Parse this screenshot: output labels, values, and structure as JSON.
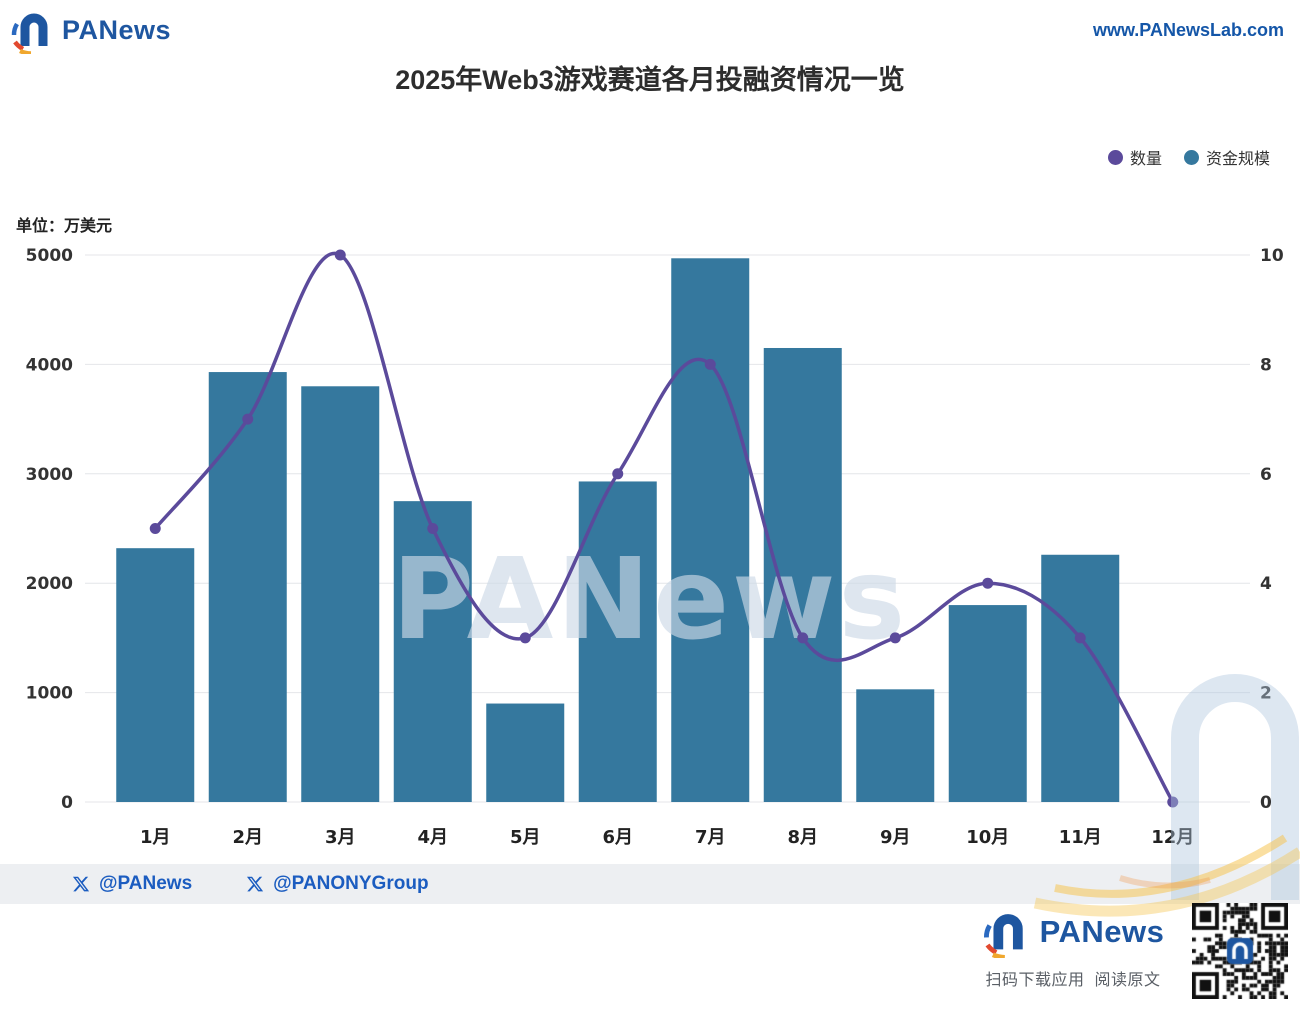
{
  "header": {
    "brand": "PANews",
    "website": "www.PANewsLab.com"
  },
  "title": "2025年Web3游戏赛道各月投融资情况一览",
  "unit_label": "单位：万美元",
  "watermark": "PANews",
  "footer": {
    "handles": [
      "@PANews",
      "@PANONYGroup"
    ],
    "brand": "PANews",
    "qr_caption": "扫码下载应用  阅读原文"
  },
  "chart_data": {
    "type": "bar+line",
    "title": "2025年Web3游戏赛道各月投融资情况一览",
    "categories": [
      "1月",
      "2月",
      "3月",
      "4月",
      "5月",
      "6月",
      "7月",
      "8月",
      "9月",
      "10月",
      "11月",
      "12月"
    ],
    "series": [
      {
        "name": "资金规模",
        "type": "bar",
        "axis": "left",
        "color": "#35789E",
        "values": [
          2320,
          3930,
          3800,
          2750,
          900,
          2930,
          4970,
          4150,
          1030,
          1800,
          2260,
          0
        ]
      },
      {
        "name": "数量",
        "type": "line",
        "axis": "right",
        "color": "#5B4A9B",
        "values": [
          5,
          7,
          10,
          5,
          3,
          6,
          8,
          3,
          3,
          4,
          3,
          0
        ]
      }
    ],
    "left_axis": {
      "label": "单位：万美元",
      "min": 0,
      "max": 5000,
      "ticks": [
        0,
        1000,
        2000,
        3000,
        4000,
        5000
      ]
    },
    "right_axis": {
      "min": 0,
      "max": 10,
      "ticks": [
        0,
        2,
        4,
        6,
        8,
        10
      ]
    },
    "grid": true,
    "legend_position": "top-right"
  }
}
